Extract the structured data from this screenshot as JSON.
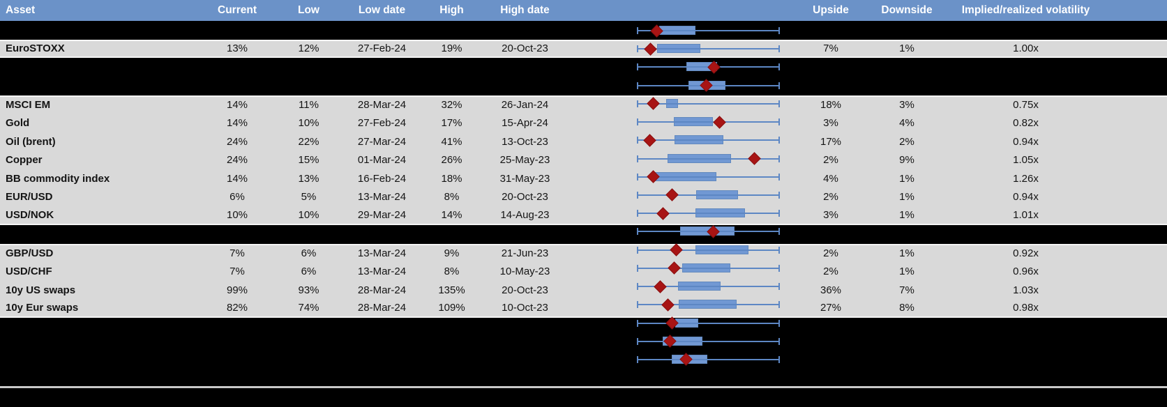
{
  "header": {
    "columns": [
      {
        "key": "asset",
        "label": "Asset"
      },
      {
        "key": "current",
        "label": "Current"
      },
      {
        "key": "low",
        "label": "Low"
      },
      {
        "key": "low_date",
        "label": "Low date"
      },
      {
        "key": "high",
        "label": "High"
      },
      {
        "key": "high_date",
        "label": "High date"
      },
      {
        "key": "upside",
        "label": "Upside"
      },
      {
        "key": "downside",
        "label": "Downside"
      },
      {
        "key": "impl_real_vol",
        "label": "Implied/realized volatility"
      }
    ]
  },
  "rows": [
    {
      "type": "black"
    },
    {
      "type": "data",
      "asset": "EuroSTOXX",
      "current": "13%",
      "low": "12%",
      "low_date": "27-Feb-24",
      "high": "19%",
      "high_date": "20-Oct-23",
      "upside": "7%",
      "downside": "1%",
      "impl_real_vol": "1.00x"
    },
    {
      "type": "black"
    },
    {
      "type": "black"
    },
    {
      "type": "data",
      "asset": "MSCI EM",
      "current": "14%",
      "low": "11%",
      "low_date": "28-Mar-24",
      "high": "32%",
      "high_date": "26-Jan-24",
      "upside": "18%",
      "downside": "3%",
      "impl_real_vol": "0.75x"
    },
    {
      "type": "data",
      "asset": "Gold",
      "current": "14%",
      "low": "10%",
      "low_date": "27-Feb-24",
      "high": "17%",
      "high_date": "15-Apr-24",
      "upside": "3%",
      "downside": "4%",
      "impl_real_vol": "0.82x"
    },
    {
      "type": "data",
      "asset": "Oil (brent)",
      "current": "24%",
      "low": "22%",
      "low_date": "27-Mar-24",
      "high": "41%",
      "high_date": "13-Oct-23",
      "upside": "17%",
      "downside": "2%",
      "impl_real_vol": "0.94x"
    },
    {
      "type": "data",
      "asset": "Copper",
      "current": "24%",
      "low": "15%",
      "low_date": "01-Mar-24",
      "high": "26%",
      "high_date": "25-May-23",
      "upside": "2%",
      "downside": "9%",
      "impl_real_vol": "1.05x"
    },
    {
      "type": "data",
      "asset": "BB commodity index",
      "current": "14%",
      "low": "13%",
      "low_date": "16-Feb-24",
      "high": "18%",
      "high_date": "31-May-23",
      "upside": "4%",
      "downside": "1%",
      "impl_real_vol": "1.26x"
    },
    {
      "type": "data",
      "asset": "EUR/USD",
      "current": "6%",
      "low": "5%",
      "low_date": "13-Mar-24",
      "high": "8%",
      "high_date": "20-Oct-23",
      "upside": "2%",
      "downside": "1%",
      "impl_real_vol": "0.94x"
    },
    {
      "type": "data",
      "asset": "USD/NOK",
      "current": "10%",
      "low": "10%",
      "low_date": "29-Mar-24",
      "high": "14%",
      "high_date": "14-Aug-23",
      "upside": "3%",
      "downside": "1%",
      "impl_real_vol": "1.01x"
    },
    {
      "type": "black"
    },
    {
      "type": "data",
      "asset": "GBP/USD",
      "current": "7%",
      "low": "6%",
      "low_date": "13-Mar-24",
      "high": "9%",
      "high_date": "21-Jun-23",
      "upside": "2%",
      "downside": "1%",
      "impl_real_vol": "0.92x"
    },
    {
      "type": "data",
      "asset": "USD/CHF",
      "current": "7%",
      "low": "6%",
      "low_date": "13-Mar-24",
      "high": "8%",
      "high_date": "10-May-23",
      "upside": "2%",
      "downside": "1%",
      "impl_real_vol": "0.96x"
    },
    {
      "type": "data",
      "asset": "10y US swaps",
      "current": "99%",
      "low": "93%",
      "low_date": "28-Mar-24",
      "high": "135%",
      "high_date": "20-Oct-23",
      "upside": "36%",
      "downside": "7%",
      "impl_real_vol": "1.03x"
    },
    {
      "type": "data",
      "asset": "10y Eur swaps",
      "current": "82%",
      "low": "74%",
      "low_date": "28-Mar-24",
      "high": "109%",
      "high_date": "10-Oct-23",
      "upside": "27%",
      "downside": "8%",
      "impl_real_vol": "0.98x"
    }
  ],
  "chart_data": {
    "type": "boxplot",
    "orientation": "horizontal",
    "x_range_normalized": [
      0,
      1
    ],
    "legend_position": "none",
    "grid": false,
    "description": "Per-row horizontal range plot: whiskers span full normalized low-high range, blue box marks inner band, red diamond marks current level",
    "items": [
      {
        "label": "",
        "whiskers": [
          0,
          1
        ],
        "box": [
          0.156,
          0.41
        ],
        "current": 0.137
      },
      {
        "label": "EuroSTOXX",
        "whiskers": [
          0,
          1
        ],
        "box": [
          0.141,
          0.444
        ],
        "current": 0.093
      },
      {
        "label": "",
        "whiskers": [
          0,
          1
        ],
        "box": [
          0.346,
          0.561
        ],
        "current": 0.537
      },
      {
        "label": "",
        "whiskers": [
          0,
          1
        ],
        "box": [
          0.361,
          0.62
        ],
        "current": 0.483
      },
      {
        "label": "MSCI EM",
        "whiskers": [
          0,
          1
        ],
        "box": [
          0.205,
          0.288
        ],
        "current": 0.117
      },
      {
        "label": "Gold",
        "whiskers": [
          0,
          1
        ],
        "box": [
          0.259,
          0.532
        ],
        "current": 0.576
      },
      {
        "label": "Oil (brent)",
        "whiskers": [
          0,
          1
        ],
        "box": [
          0.263,
          0.605
        ],
        "current": 0.088
      },
      {
        "label": "Copper",
        "whiskers": [
          0,
          1
        ],
        "box": [
          0.215,
          0.659
        ],
        "current": 0.824
      },
      {
        "label": "BB commodity index",
        "whiskers": [
          0,
          1
        ],
        "box": [
          0.122,
          0.556
        ],
        "current": 0.117
      },
      {
        "label": "EUR/USD",
        "whiskers": [
          0,
          1
        ],
        "box": [
          0.415,
          0.707
        ],
        "current": 0.244
      },
      {
        "label": "USD/NOK",
        "whiskers": [
          0,
          1
        ],
        "box": [
          0.41,
          0.756
        ],
        "current": 0.185
      },
      {
        "label": "",
        "whiskers": [
          0,
          1
        ],
        "box": [
          0.302,
          0.683
        ],
        "current": 0.532
      },
      {
        "label": "GBP/USD",
        "whiskers": [
          0,
          1
        ],
        "box": [
          0.41,
          0.78
        ],
        "current": 0.278
      },
      {
        "label": "USD/CHF",
        "whiskers": [
          0,
          1
        ],
        "box": [
          0.317,
          0.654
        ],
        "current": 0.259
      },
      {
        "label": "10y US swaps",
        "whiskers": [
          0,
          1
        ],
        "box": [
          0.288,
          0.585
        ],
        "current": 0.161
      },
      {
        "label": "10y Eur swaps",
        "whiskers": [
          0,
          1
        ],
        "box": [
          0.293,
          0.698
        ],
        "current": 0.215
      },
      {
        "label": "",
        "whiskers": [
          0,
          1
        ],
        "box": [
          0.268,
          0.429
        ],
        "current": 0.244
      },
      {
        "label": "",
        "whiskers": [
          0,
          1
        ],
        "box": [
          0.18,
          0.459
        ],
        "current": 0.234
      },
      {
        "label": "",
        "whiskers": [
          0,
          1
        ],
        "box": [
          0.244,
          0.493
        ],
        "current": 0.346
      }
    ]
  },
  "colors": {
    "header_bg": "#6b92c8",
    "header_text": "#ffffff",
    "row_gray": "#d9d9d9",
    "row_black": "#000000",
    "box_fill": "#7198d3",
    "box_border": "#6289be",
    "whisker": "#5d87c4",
    "diamond": "#a81414"
  }
}
